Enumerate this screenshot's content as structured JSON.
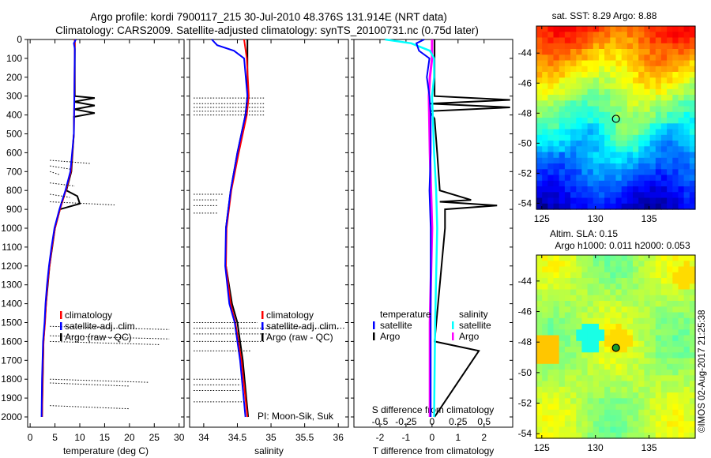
{
  "title_line1": "Argo profile: kordi 7900117_215 30-Jul-2010 48.376S 131.914E (NRT data)",
  "title_line2": "Climatology: CARS2009. Satellite-adjusted climatology: synTS_20100731.nc (0.75d later)",
  "credit": "©IMOS 02-Aug-2017 21:25:38",
  "colors": {
    "climatology": "#ff0000",
    "satellite": "#0000ff",
    "argo": "#000000",
    "sat_salinity": "#00ffff",
    "argo_salinity": "#ff00ff"
  },
  "chart_data": [
    {
      "type": "line",
      "xlabel": "temperature (deg C)",
      "ylabel": "",
      "xlim": [
        -0.5,
        31
      ],
      "ylim": [
        2050,
        0
      ],
      "xticks": [
        0,
        5,
        10,
        15,
        20,
        25,
        30
      ],
      "yticks": [
        0,
        100,
        200,
        300,
        400,
        500,
        600,
        700,
        800,
        900,
        1000,
        1100,
        1200,
        1300,
        1400,
        1500,
        1600,
        1700,
        1800,
        1900,
        2000
      ],
      "legend": [
        "climatology",
        "satellite-adj. clim.",
        "Argo (raw - QC)"
      ],
      "legend_position": "bottom-center",
      "series": [
        {
          "name": "climatology",
          "depth": [
            0,
            300,
            500,
            700,
            800,
            900,
            1000,
            1100,
            1200,
            1300,
            1400,
            1500,
            1600,
            1800,
            2000
          ],
          "values": [
            9.0,
            8.9,
            8.8,
            8.2,
            7.2,
            6.0,
            5.0,
            4.4,
            3.9,
            3.5,
            3.2,
            3.0,
            2.7,
            2.5,
            2.4
          ]
        },
        {
          "name": "satellite-adj. clim.",
          "depth": [
            0,
            20,
            50,
            300,
            500,
            700,
            800,
            900,
            1000,
            1100,
            1200,
            1300,
            1400,
            1500,
            1600,
            1800,
            2000
          ],
          "values": [
            9.2,
            8.8,
            9.0,
            8.9,
            8.8,
            8.1,
            7.1,
            5.9,
            4.9,
            4.3,
            3.8,
            3.4,
            3.1,
            2.9,
            2.6,
            2.4,
            2.3
          ]
        },
        {
          "name": "Argo (raw - QC)",
          "depth": [
            0,
            300,
            310,
            330,
            350,
            370,
            390,
            410,
            500,
            700,
            800,
            830,
            870,
            900,
            1000,
            1200,
            1400,
            1600,
            2000
          ],
          "values": [
            9.0,
            9.0,
            13,
            8.8,
            13,
            8.9,
            13,
            8.8,
            8.8,
            8.3,
            7.3,
            9.5,
            10,
            6.0,
            5.0,
            3.9,
            3.2,
            2.7,
            2.4
          ]
        }
      ]
    },
    {
      "type": "line",
      "xlabel": "salinity",
      "xlim": [
        33.79,
        36.15
      ],
      "ylim": [
        2050,
        0
      ],
      "xticks": [
        34,
        34.5,
        35,
        35.5,
        36
      ],
      "legend": [
        "climatology",
        "satellite-adj. clim.",
        "Argo (raw - QC)"
      ],
      "legend_position": "bottom-right",
      "annotation": "PI: Moon-Sik, Suk",
      "series": [
        {
          "name": "climatology",
          "depth": [
            0,
            50,
            100,
            300,
            400,
            600,
            800,
            1000,
            1200,
            1400,
            1500,
            1700,
            2000
          ],
          "values": [
            34.6,
            34.62,
            34.64,
            34.67,
            34.64,
            34.52,
            34.41,
            34.34,
            34.33,
            34.4,
            34.47,
            34.56,
            34.65
          ]
        },
        {
          "name": "satellite-adj. clim.",
          "depth": [
            0,
            30,
            60,
            100,
            300,
            400,
            600,
            800,
            1000,
            1200,
            1400,
            1500,
            1700,
            2000
          ],
          "values": [
            34.12,
            34.2,
            34.45,
            34.6,
            34.65,
            34.62,
            34.5,
            34.4,
            34.33,
            34.32,
            34.38,
            34.46,
            34.54,
            34.62
          ]
        },
        {
          "name": "Argo (raw - QC)",
          "depth": [
            0,
            100,
            300,
            400,
            600,
            800,
            1000,
            1200,
            1400,
            1500,
            1700,
            2000
          ],
          "values": [
            34.65,
            34.65,
            34.65,
            34.62,
            34.5,
            34.4,
            34.33,
            34.33,
            34.42,
            34.5,
            34.58,
            34.66
          ]
        }
      ]
    },
    {
      "type": "line",
      "xlabel": "T difference from climatology",
      "xlabel2": "S difference from climatology",
      "xlim": [
        -3,
        3.1
      ],
      "xticks": [
        -2,
        -1,
        0,
        1,
        2
      ],
      "xlim2": [
        -0.75,
        0.775
      ],
      "xticks2": [
        -0.5,
        -0.25,
        0,
        0.25,
        0.5
      ],
      "ylim": [
        2050,
        0
      ],
      "legend_title_t": "temperature",
      "legend_title_s": "salinity",
      "legend": [
        "satellite",
        "Argo",
        "satellite",
        "Argo"
      ],
      "legend_position": "bottom",
      "series": [
        {
          "name": "temperature satellite",
          "depth": [
            0,
            20,
            60,
            100,
            200,
            300,
            400,
            600,
            800,
            1000,
            1200,
            1600,
            2000
          ],
          "values": [
            -0.3,
            -0.6,
            -0.5,
            -0.1,
            -0.2,
            -0.1,
            -0.05,
            -0.05,
            -0.1,
            -0.05,
            -0.05,
            -0.05,
            -0.05
          ]
        },
        {
          "name": "temperature Argo",
          "depth": [
            0,
            80,
            300,
            320,
            340,
            360,
            380,
            420,
            600,
            800,
            850,
            860,
            880,
            900,
            1000,
            1600,
            1650,
            2000
          ],
          "values": [
            0.1,
            0.1,
            0.1,
            3,
            -0.1,
            3,
            -0.1,
            0.1,
            0.2,
            0.3,
            1.5,
            0.3,
            2.5,
            0.5,
            0.5,
            0.1,
            1.8,
            0.1
          ]
        },
        {
          "name": "salinity satellite",
          "depth": [
            0,
            20,
            60,
            100,
            200,
            300,
            600,
            800,
            1000,
            1500,
            2000
          ],
          "values": [
            -0.45,
            -0.2,
            -0.02,
            0.02,
            0.02,
            0.0,
            0.02,
            0.04,
            0.05,
            0.03,
            0.02
          ]
        },
        {
          "name": "salinity Argo",
          "depth": [
            0,
            100,
            200,
            300,
            600,
            1000,
            1500,
            2000
          ],
          "values": [
            0.0,
            0.0,
            -0.02,
            -0.03,
            -0.02,
            0.0,
            -0.02,
            -0.02
          ]
        }
      ]
    },
    {
      "type": "heatmap",
      "title": "sat. SST: 8.29 Argo: 8.88",
      "xlim": [
        124.5,
        139.3
      ],
      "ylim": [
        -54.4,
        -42.2
      ],
      "xticks": [
        125,
        130,
        135
      ],
      "yticks": [
        -44,
        -46,
        -48,
        -50,
        -52,
        -54
      ],
      "marker": {
        "lon": 131.914,
        "lat": -48.376
      }
    },
    {
      "type": "heatmap",
      "title": "Altim. SLA: 0.15",
      "subtitle": "Argo h1000: 0.011 h2000: 0.053",
      "xlim": [
        124.5,
        139.3
      ],
      "ylim": [
        -54.3,
        -42.3
      ],
      "xticks": [
        125,
        130,
        135
      ],
      "yticks": [
        -44,
        -46,
        -48,
        -50,
        -52,
        -54
      ],
      "marker": {
        "lon": 131.914,
        "lat": -48.376
      }
    }
  ]
}
